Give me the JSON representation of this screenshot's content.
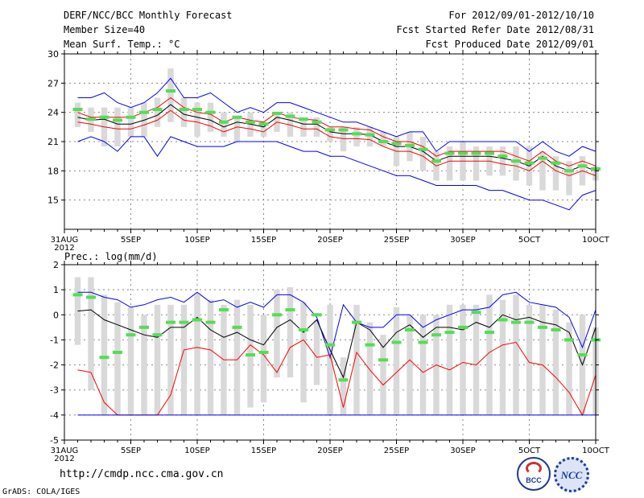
{
  "header": {
    "title": "DERF/NCC/BCC Monthly Forecast",
    "member_size": "Member Size=40",
    "variable": "Mean Surf. Temp.: °C",
    "forecast_period": "For 2012/09/01-2012/10/10",
    "started_date": "Fcst Started Refer Date 2012/08/31",
    "produced_date": "Fcst Produced Date 2012/09/01"
  },
  "footer": {
    "url": "http://cmdp.ncc.cma.gov.cn",
    "credit": "GrADS: COLA/IGES",
    "logo_left_text": "BCC",
    "logo_right_text": "NCC"
  },
  "colors": {
    "background": "#ffffff",
    "box": "#d9d9d9",
    "mean": "#000000",
    "spread": "#0000ff",
    "lower": "#ff0000",
    "green": "#55dd55",
    "grid": "#888888"
  },
  "chart_data": [
    {
      "type": "line",
      "name": "temperature",
      "subtitle": "Mean Surf. Temp.: °C",
      "x_tick_labels": [
        "31AUG\n2012",
        "5SEP",
        "10SEP",
        "15SEP",
        "20SEP",
        "25SEP",
        "30SEP",
        "5OCT",
        "10OCT"
      ],
      "x_tick_days": [
        0,
        5,
        10,
        15,
        20,
        25,
        30,
        35,
        40
      ],
      "xlim": [
        0,
        40
      ],
      "ylim": [
        12,
        30
      ],
      "y_ticks": [
        15,
        18,
        21,
        24,
        27,
        30
      ],
      "y_tick_labels": [
        "15",
        "18",
        "21",
        "24",
        "27",
        "30"
      ],
      "days": [
        1,
        2,
        3,
        4,
        5,
        6,
        7,
        8,
        9,
        10,
        11,
        12,
        13,
        14,
        15,
        16,
        17,
        18,
        19,
        20,
        21,
        22,
        23,
        24,
        25,
        26,
        27,
        28,
        29,
        30,
        31,
        32,
        33,
        34,
        35,
        36,
        37,
        38,
        39,
        40
      ],
      "box_low": [
        22.5,
        22.0,
        20.5,
        20.5,
        21.5,
        21.5,
        22.5,
        23.0,
        22.5,
        21.5,
        22.0,
        21.5,
        21.0,
        21.5,
        21.5,
        22.0,
        21.5,
        21.5,
        21.5,
        21.0,
        20.0,
        20.5,
        20.5,
        20.5,
        18.5,
        19.0,
        18.0,
        17.0,
        17.0,
        17.0,
        17.0,
        17.5,
        17.5,
        17.0,
        16.5,
        16.0,
        16.0,
        15.5,
        16.5,
        17.0
      ],
      "box_high": [
        25.0,
        24.5,
        24.5,
        24.5,
        24.5,
        25.0,
        25.5,
        28.5,
        25.5,
        25.0,
        25.0,
        24.0,
        23.5,
        24.0,
        23.0,
        24.0,
        24.0,
        23.5,
        23.5,
        22.5,
        22.5,
        22.5,
        22.5,
        22.0,
        21.5,
        22.0,
        21.5,
        20.0,
        20.5,
        21.0,
        20.5,
        20.5,
        20.5,
        20.5,
        20.5,
        20.0,
        19.5,
        19.0,
        19.5,
        18.5
      ],
      "upper": [
        25.5,
        25.5,
        26.0,
        25.0,
        24.5,
        25.0,
        26.0,
        27.5,
        25.5,
        25.5,
        26.0,
        25.0,
        24.0,
        24.5,
        24.0,
        25.0,
        25.0,
        24.5,
        24.0,
        23.5,
        23.0,
        23.0,
        22.5,
        22.0,
        21.5,
        22.0,
        22.0,
        20.0,
        21.0,
        21.0,
        21.0,
        21.0,
        21.0,
        21.0,
        20.0,
        21.0,
        20.0,
        19.5,
        20.5,
        20.0
      ],
      "lower": [
        21.0,
        21.5,
        21.0,
        20.0,
        21.5,
        21.5,
        19.5,
        21.5,
        21.0,
        20.5,
        20.5,
        20.5,
        21.0,
        21.0,
        21.0,
        21.0,
        20.5,
        20.0,
        20.0,
        19.5,
        19.5,
        19.0,
        18.5,
        18.0,
        17.5,
        17.5,
        17.0,
        16.5,
        16.5,
        16.5,
        16.5,
        16.0,
        16.0,
        15.5,
        15.0,
        15.0,
        14.5,
        14.0,
        15.5,
        16.0
      ],
      "red_upper": [
        24.0,
        23.5,
        23.5,
        23.5,
        23.5,
        24.0,
        24.5,
        25.5,
        24.5,
        24.0,
        23.8,
        23.0,
        23.5,
        23.2,
        23.0,
        24.0,
        23.5,
        23.3,
        23.2,
        22.5,
        22.5,
        22.3,
        22.2,
        21.5,
        21.0,
        21.0,
        20.5,
        19.5,
        20.0,
        20.0,
        20.0,
        20.0,
        20.0,
        19.5,
        19.0,
        20.0,
        19.0,
        18.5,
        19.0,
        18.5
      ],
      "mean": [
        23.5,
        23.2,
        23.3,
        22.8,
        22.8,
        23.2,
        23.7,
        24.8,
        23.8,
        23.5,
        23.2,
        22.5,
        23.0,
        22.8,
        22.5,
        23.5,
        23.2,
        22.8,
        22.8,
        22.0,
        21.8,
        21.8,
        21.7,
        21.0,
        20.5,
        20.5,
        20.0,
        19.0,
        19.5,
        19.5,
        19.5,
        19.5,
        19.3,
        19.0,
        18.5,
        19.5,
        18.5,
        18.0,
        18.5,
        18.0
      ],
      "red_lower": [
        23.0,
        22.8,
        22.5,
        22.3,
        22.3,
        22.7,
        23.2,
        24.2,
        23.2,
        23.0,
        22.6,
        22.0,
        22.5,
        22.3,
        22.0,
        23.0,
        22.7,
        22.3,
        22.3,
        21.5,
        21.3,
        21.3,
        21.2,
        20.5,
        20.0,
        20.0,
        19.5,
        18.5,
        19.0,
        19.0,
        19.0,
        19.0,
        18.7,
        18.5,
        18.0,
        19.0,
        18.0,
        17.5,
        18.0,
        17.5
      ],
      "green": [
        24.3,
        23.3,
        23.5,
        23.2,
        23.5,
        24.0,
        24.3,
        26.2,
        24.3,
        24.3,
        24.0,
        23.0,
        23.5,
        23.0,
        22.8,
        23.9,
        23.6,
        23.3,
        23.0,
        22.2,
        22.2,
        21.8,
        21.7,
        21.0,
        20.8,
        20.6,
        20.2,
        19.0,
        19.8,
        19.8,
        19.8,
        19.8,
        19.5,
        19.0,
        18.8,
        19.3,
        18.8,
        18.0,
        18.5,
        18.2
      ]
    },
    {
      "type": "line",
      "name": "precipitation",
      "subtitle": "Prec.: log(mm/d)",
      "x_tick_labels": [
        "31AUG\n2012",
        "5SEP",
        "10SEP",
        "15SEP",
        "20SEP",
        "25SEP",
        "30SEP",
        "5OCT",
        "10OCT"
      ],
      "x_tick_days": [
        0,
        5,
        10,
        15,
        20,
        25,
        30,
        35,
        40
      ],
      "xlim": [
        0,
        40
      ],
      "ylim": [
        -5,
        2
      ],
      "y_ticks": [
        -5,
        -4,
        -3,
        -2,
        -1,
        0,
        1,
        2
      ],
      "y_tick_labels": [
        "-5",
        "-4",
        "-3",
        "-2",
        "-1",
        "0",
        "1",
        "2"
      ],
      "days": [
        1,
        2,
        3,
        4,
        5,
        6,
        7,
        8,
        9,
        10,
        11,
        12,
        13,
        14,
        15,
        16,
        17,
        18,
        19,
        20,
        21,
        22,
        23,
        24,
        25,
        26,
        27,
        28,
        29,
        30,
        31,
        32,
        33,
        34,
        35,
        36,
        37,
        38,
        39,
        40
      ],
      "box_low": [
        -1.2,
        -3.0,
        -4.0,
        -4.0,
        -4.0,
        -4.0,
        -4.0,
        -4.0,
        -4.0,
        -4.0,
        -4.0,
        -4.0,
        -4.0,
        -3.7,
        -3.5,
        -2.5,
        -2.5,
        -3.5,
        -2.8,
        -4.0,
        -4.0,
        -4.0,
        -4.0,
        -4.0,
        -4.0,
        -4.0,
        -4.0,
        -4.0,
        -4.0,
        -4.0,
        -4.0,
        -4.0,
        -4.0,
        -4.0,
        -4.0,
        -4.0,
        -4.0,
        -4.0,
        -4.0,
        -4.0
      ],
      "box_high": [
        1.5,
        1.5,
        0.8,
        0.5,
        0.3,
        0.0,
        0.4,
        0.4,
        0.4,
        0.8,
        0.6,
        0.4,
        0.6,
        0.4,
        0.0,
        1.0,
        1.1,
        0.5,
        -0.2,
        0.4,
        -1.7,
        0.4,
        -0.3,
        -0.8,
        0.3,
        0.0,
        0.0,
        0.0,
        0.4,
        0.4,
        0.4,
        0.8,
        0.6,
        0.8,
        0.4,
        0.4,
        0.2,
        -0.3,
        0.0,
        -0.5
      ],
      "upper": [
        0.9,
        0.9,
        0.7,
        0.6,
        0.3,
        0.4,
        0.6,
        0.7,
        0.5,
        0.9,
        0.5,
        0.6,
        0.3,
        0.5,
        0.3,
        0.8,
        0.8,
        0.5,
        -0.1,
        -1.7,
        0.4,
        -0.3,
        -0.5,
        -0.5,
        0.0,
        0.0,
        -0.5,
        -0.2,
        0.0,
        0.2,
        0.2,
        0.3,
        0.8,
        0.9,
        0.5,
        0.4,
        0.3,
        -0.1,
        -1.3,
        0.2
      ],
      "mean": [
        0.15,
        0.2,
        -0.2,
        -0.4,
        -0.6,
        -0.8,
        -0.9,
        -0.5,
        -0.5,
        -0.1,
        -0.6,
        -0.9,
        -0.7,
        -1.0,
        -1.2,
        -0.5,
        -0.2,
        -0.7,
        -0.2,
        -1.4,
        -2.5,
        -0.3,
        -0.6,
        -1.3,
        -0.7,
        -0.4,
        -0.9,
        -0.5,
        -0.5,
        -0.6,
        -0.3,
        -0.5,
        0.0,
        -0.2,
        -0.1,
        -0.3,
        -0.4,
        -0.7,
        -2.0,
        -0.5
      ],
      "red": [
        -2.2,
        -2.3,
        -3.5,
        -4.0,
        -4.0,
        -4.0,
        -4.0,
        -3.2,
        -1.4,
        -1.3,
        -1.4,
        -1.8,
        -1.8,
        -1.2,
        -1.6,
        -2.3,
        -1.3,
        -1.0,
        -1.7,
        -1.6,
        -3.7,
        -1.5,
        -2.2,
        -2.8,
        -2.3,
        -1.8,
        -2.3,
        -2.0,
        -2.2,
        -1.9,
        -2.0,
        -1.5,
        -1.2,
        -1.1,
        -1.9,
        -2.0,
        -2.5,
        -3.1,
        -4.0,
        -2.4
      ],
      "green": [
        0.8,
        0.7,
        -1.7,
        -1.5,
        -0.8,
        -0.5,
        -0.8,
        -0.3,
        -0.3,
        -0.2,
        -0.3,
        0.2,
        -0.5,
        -1.6,
        -1.5,
        0.0,
        0.2,
        -0.6,
        0.0,
        -1.2,
        -2.6,
        -0.3,
        -1.2,
        -1.8,
        -1.1,
        -0.6,
        -1.1,
        -0.8,
        -0.7,
        -0.5,
        0.1,
        -0.7,
        -0.2,
        -0.3,
        -0.3,
        -0.5,
        -0.6,
        -1.0,
        -1.6,
        -1.0
      ],
      "baseline_value": -4
    }
  ]
}
